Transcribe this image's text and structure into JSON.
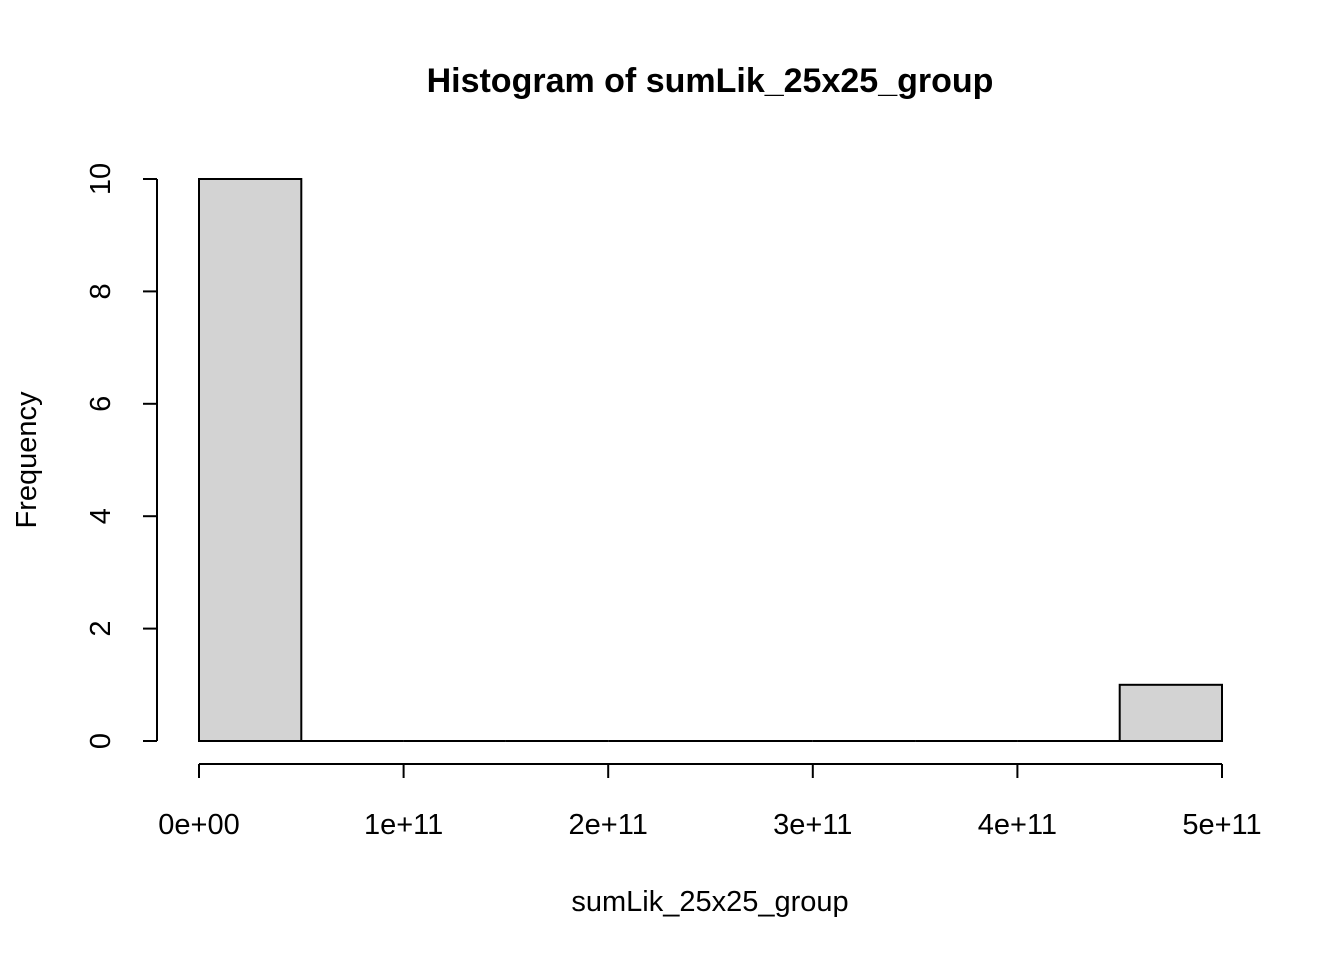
{
  "chart_data": {
    "type": "bar",
    "title": "Histogram of sumLik_25x25_group",
    "xlabel": "sumLik_25x25_group",
    "ylabel": "Frequency",
    "bins": [
      {
        "x0": 0,
        "x1": 50000000000,
        "count": 10
      },
      {
        "x0": 50000000000,
        "x1": 100000000000,
        "count": 0
      },
      {
        "x0": 100000000000,
        "x1": 150000000000,
        "count": 0
      },
      {
        "x0": 150000000000,
        "x1": 200000000000,
        "count": 0
      },
      {
        "x0": 200000000000,
        "x1": 250000000000,
        "count": 0
      },
      {
        "x0": 250000000000,
        "x1": 300000000000,
        "count": 0
      },
      {
        "x0": 300000000000,
        "x1": 350000000000,
        "count": 0
      },
      {
        "x0": 350000000000,
        "x1": 400000000000,
        "count": 0
      },
      {
        "x0": 400000000000,
        "x1": 450000000000,
        "count": 0
      },
      {
        "x0": 450000000000,
        "x1": 500000000000,
        "count": 1
      }
    ],
    "x_ticks": [
      {
        "value": 0,
        "label": "0e+00"
      },
      {
        "value": 100000000000,
        "label": "1e+11"
      },
      {
        "value": 200000000000,
        "label": "2e+11"
      },
      {
        "value": 300000000000,
        "label": "3e+11"
      },
      {
        "value": 400000000000,
        "label": "4e+11"
      },
      {
        "value": 500000000000,
        "label": "5e+11"
      }
    ],
    "y_ticks": [
      {
        "value": 0,
        "label": "0"
      },
      {
        "value": 2,
        "label": "2"
      },
      {
        "value": 4,
        "label": "4"
      },
      {
        "value": 6,
        "label": "6"
      },
      {
        "value": 8,
        "label": "8"
      },
      {
        "value": 10,
        "label": "10"
      }
    ],
    "xlim": [
      0,
      500000000000
    ],
    "ylim": [
      0,
      10
    ],
    "bar_color": "#d3d3d3",
    "grid": false,
    "legend": "none"
  }
}
